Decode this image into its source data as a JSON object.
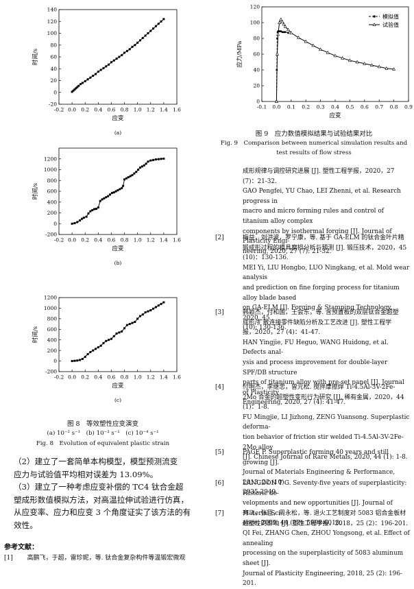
{
  "chart_data": [
    {
      "type": "line",
      "id": "fig8a",
      "ylabel": "时间/s",
      "xlabel": "应变",
      "panel_label": "(a)",
      "xlim": [
        -0.2,
        1.6
      ],
      "ylim": [
        -20,
        140
      ],
      "xticks": [
        -0.2,
        0.0,
        0.2,
        0.4,
        0.6,
        0.8,
        1.0,
        1.2,
        1.4,
        1.6
      ],
      "yticks": [
        -20,
        0,
        20,
        40,
        60,
        80,
        100,
        120,
        140
      ],
      "xtick_labels": [
        "-0.2",
        "0.0",
        "0.2",
        "0.4",
        "0.6",
        "0.8",
        "1.0",
        "1.2",
        "1.4",
        "1.6"
      ],
      "ytick_labels": [
        "-20",
        "0",
        "20",
        "40",
        "60",
        "80",
        "100",
        "120",
        "140"
      ],
      "series": [
        {
          "marker": "square",
          "x": [
            0.0,
            0.02,
            0.04,
            0.06,
            0.08,
            0.1,
            0.13,
            0.16,
            0.2,
            0.24,
            0.28,
            0.32,
            0.36,
            0.4,
            0.44,
            0.48,
            0.52,
            0.56,
            0.6,
            0.64,
            0.68,
            0.72,
            0.76,
            0.8,
            0.84,
            0.88,
            0.92,
            0.96,
            1.0,
            1.04,
            1.08,
            1.12,
            1.16,
            1.2,
            1.24,
            1.28,
            1.32,
            1.36,
            1.4
          ],
          "y": [
            1,
            3,
            5,
            7,
            9,
            11,
            14,
            16,
            19,
            22,
            25,
            28,
            31,
            35,
            38,
            41,
            44,
            47,
            51,
            54,
            57,
            60,
            63,
            67,
            70,
            73,
            77,
            80,
            84,
            88,
            92,
            96,
            100,
            104,
            108,
            112,
            116,
            120,
            124
          ]
        }
      ]
    },
    {
      "type": "line",
      "id": "fig8b",
      "ylabel": "时间/s",
      "xlabel": "应变",
      "panel_label": "(b)",
      "xlim": [
        -0.2,
        1.6
      ],
      "ylim": [
        -200,
        1400
      ],
      "xticks": [
        -0.2,
        0.0,
        0.2,
        0.4,
        0.6,
        0.8,
        1.0,
        1.2,
        1.4,
        1.6
      ],
      "yticks": [
        -200,
        0,
        200,
        400,
        600,
        800,
        1000,
        1200
      ],
      "xtick_labels": [
        "-0.2",
        "0.0",
        "0.2",
        "0.4",
        "0.6",
        "0.8",
        "1.0",
        "1.2",
        "1.4",
        "1.6"
      ],
      "ytick_labels": [
        "-200",
        "0",
        "200",
        "400",
        "600",
        "800",
        "1000",
        "1200"
      ],
      "series": [
        {
          "marker": "square",
          "x": [
            0.0,
            0.04,
            0.08,
            0.12,
            0.15,
            0.18,
            0.22,
            0.25,
            0.28,
            0.31,
            0.34,
            0.37,
            0.4,
            0.43,
            0.46,
            0.49,
            0.52,
            0.55,
            0.58,
            0.61,
            0.64,
            0.67,
            0.7,
            0.73,
            0.76,
            0.78,
            0.8,
            0.83,
            0.86,
            0.89,
            0.92,
            0.95,
            0.98,
            1.01,
            1.04,
            1.07,
            1.1,
            1.13,
            1.16,
            1.2,
            1.24,
            1.28,
            1.32,
            1.36,
            1.4
          ],
          "y": [
            0,
            10,
            30,
            60,
            90,
            110,
            130,
            190,
            230,
            250,
            270,
            275,
            300,
            420,
            450,
            470,
            490,
            510,
            540,
            570,
            580,
            600,
            620,
            640,
            660,
            700,
            820,
            840,
            860,
            880,
            900,
            930,
            960,
            1000,
            1040,
            1060,
            1080,
            1110,
            1150,
            1170,
            1180,
            1190,
            1195,
            1200,
            1205
          ]
        }
      ]
    },
    {
      "type": "line",
      "id": "fig8c",
      "ylabel": "时间/s",
      "xlabel": "应变",
      "panel_label": "(c)",
      "xlim": [
        -0.2,
        1.6
      ],
      "ylim": [
        -200,
        1200
      ],
      "xticks": [
        -0.2,
        0.0,
        0.2,
        0.4,
        0.6,
        0.8,
        1.0,
        1.2,
        1.4,
        1.6
      ],
      "yticks": [
        -200,
        0,
        200,
        400,
        600,
        800,
        1000,
        1200
      ],
      "xtick_labels": [
        "-0.2",
        "0.0",
        "0.2",
        "0.4",
        "0.6",
        "0.8",
        "1.0",
        "1.2",
        "1.4",
        "1.6"
      ],
      "ytick_labels": [
        "-200",
        "0",
        "200",
        "400",
        "600",
        "800",
        "1000",
        "1200"
      ],
      "series": [
        {
          "marker": "square",
          "x": [
            0.0,
            0.04,
            0.08,
            0.12,
            0.16,
            0.2,
            0.24,
            0.28,
            0.32,
            0.36,
            0.4,
            0.44,
            0.48,
            0.52,
            0.56,
            0.6,
            0.64,
            0.68,
            0.72,
            0.76,
            0.8,
            0.84,
            0.88,
            0.92,
            0.96,
            1.0,
            1.04,
            1.08,
            1.12,
            1.16,
            1.2,
            1.24,
            1.28,
            1.32,
            1.36,
            1.4
          ],
          "y": [
            0,
            5,
            10,
            20,
            40,
            80,
            130,
            170,
            200,
            230,
            260,
            290,
            340,
            380,
            400,
            420,
            470,
            520,
            540,
            560,
            620,
            680,
            700,
            720,
            740,
            800,
            850,
            880,
            920,
            940,
            960,
            990,
            1020,
            1050,
            1080,
            1110
          ]
        }
      ]
    },
    {
      "type": "line",
      "id": "fig9",
      "ylabel": "应力/MPa",
      "xlabel": "应变",
      "xlim": [
        -0.1,
        0.9
      ],
      "ylim": [
        0,
        120
      ],
      "xticks": [
        -0.1,
        0.0,
        0.1,
        0.2,
        0.3,
        0.4,
        0.5,
        0.6,
        0.7,
        0.8,
        0.9
      ],
      "yticks": [
        0,
        20,
        40,
        60,
        80,
        100,
        120
      ],
      "xtick_labels": [
        "-0.1",
        "0.0",
        "0.1",
        "0.2",
        "0.3",
        "0.4",
        "0.5",
        "0.6",
        "0.7",
        "0.8",
        "0.9"
      ],
      "ytick_labels": [
        "0",
        "20",
        "40",
        "60",
        "80",
        "100",
        "120"
      ],
      "legend_position": "top-right",
      "series": [
        {
          "name": "模拟值",
          "style": "dashed",
          "marker": "square",
          "x": [
            0.0,
            0.002,
            0.005,
            0.008,
            0.012,
            0.016,
            0.02,
            0.03,
            0.04,
            0.05,
            0.06,
            0.08
          ],
          "y": [
            0,
            40,
            80,
            88,
            89,
            89,
            89,
            89,
            88,
            88,
            88,
            87
          ]
        },
        {
          "name": "试验值",
          "style": "solid",
          "marker": "triangle",
          "x": [
            0.0,
            0.005,
            0.01,
            0.02,
            0.03,
            0.04,
            0.05,
            0.06,
            0.08,
            0.1,
            0.15,
            0.2,
            0.25,
            0.3,
            0.35,
            0.4,
            0.45,
            0.5,
            0.55,
            0.6,
            0.65,
            0.7,
            0.75,
            0.8
          ],
          "y": [
            0,
            60,
            85,
            100,
            104,
            101,
            98,
            95,
            91,
            87,
            81,
            76,
            71,
            66,
            62,
            58,
            55,
            52,
            50,
            48,
            46,
            44,
            42,
            41
          ]
        }
      ]
    }
  ],
  "fig8": {
    "caption_cn": "图 8　等效塑性应变演变",
    "subcaption": "(a) 10⁻² s⁻¹　(b) 10⁻³ s⁻¹　(c) 10⁻⁴ s⁻¹",
    "caption_en": "Fig. 8　Evolution of equivalent plastic strain"
  },
  "fig9": {
    "caption_cn": "图 9　应力数值模拟结果与试验结果对比",
    "caption_en_1": "Fig. 9　Comparison between numerical simulation results and",
    "caption_en_2": "test results of flow stress"
  },
  "conclusions": [
    "（2）建立了一套简单本构模型，模型预测流变",
    "应力与试验值平均相对误差为 13.09%。",
    "（3）建立了一种考虑应变补偿的 TC4 钛合金超",
    "塑成形数值模拟方法，对高温拉伸试验进行仿真，",
    "从应变率、应力和应变 3 个角度证实了该方法的有",
    "效性。"
  ],
  "references_heading": "参考文献：",
  "ref1_num": "[1]",
  "ref1_line1": "高鹏飞，于超，雷珍妮，等. 钛合金复杂构件等温锻宏微观",
  "ref1_cont": [
    "成形规律与调控研究进展 [J]. 塑性工程学报，2020，27",
    "(7)：21-32.",
    "GAO Pengfei, YU Chao, LEI Zhenni, et al. Research progress in",
    "macro and micro forming rules and control of titanium alloy complex",
    "components by isothermal forging [J]. Journal of Plasticity Engi-",
    "neering, 2020, 27 (7): 21-32."
  ],
  "references": [
    {
      "num": "[2]",
      "lines": [
        "梅益，刘洪波，罗宁康，等. 基于 GA-ELM 的钛合金叶片精",
        "锻成形过程的模具磨损分析与预测 [J]. 锻压技术，2020，45",
        "(10)：130-136.",
        "MEI Yi, LIU Hongbo, LUO Ningkang, et al. Mold wear analysis",
        "and prediction on fine forging process for titanium alloy blade based",
        "on GA-ELM [J]. Forging & Stamping Technology, 2020, 45",
        "(10): 130-136."
      ]
    },
    {
      "num": "[3]",
      "lines": [
        "韩颖杰，付和国，王会东，等. 含预置板的双层钛合金超塑",
        "成形/扩散连接零件缺陷分析及工艺改进 [J]. 塑性工程学",
        "报，2020，27 (4)：41-47.",
        "HAN Yingjie, FU Heguo, WANG Huidong, et al. Defects anal-",
        "ysis and process improvement for double-layer SPF/DB structure",
        "parts of titanium alloy with pre-set panel [J]. Journal of Plasticity",
        "Engineering, 2020, 27 (4): 41-47."
      ]
    },
    {
      "num": "[4]",
      "lines": [
        "付明杰，李继忠，曾元松. 搅拌摩擦焊 Ti-4.5Al-3V-2Fe-",
        "2Mo 合金的超塑性变形行为研究 [J]. 稀有金属，2020，44",
        "(1)：1-8.",
        "FU Mingjie, LI Jizhong, ZENG Yuansong. Superplastic deforma-",
        "tion behavior of friction stir welded Ti-4.5Al-3V-2Fe-2Mo alloy",
        "[J]. Chinese Journal of Rare Metals, 2020, 44 (1): 1-8."
      ]
    },
    {
      "num": "[5]",
      "lines": [
        "PAGE P. Superplastic forming 40 years and still growing [J].",
        "Journal of Materials Engineering & Performance, 2013, 22 (10):",
        "2935-2949."
      ]
    },
    {
      "num": "[6]",
      "lines": [
        "LANGDON T G. Seventy-five years of superplasticity: Historic de-",
        "velopments and new opportunities [J]. Journal of Material Sci-",
        "ence, 2009, 44 (22): 5998-6010."
      ]
    },
    {
      "num": "[7]",
      "lines": [
        "齐飞，张臣，周永松，等. 退火工艺制度对 5083 铝合金板材",
        "超塑性的影响 [J]. 塑性工程学报，2018，25 (2)：196-201.",
        "QI Fei, ZHANG Chen, ZHOU Yongsong, et al. Effect of annealing",
        "processing on the superplasticity of 5083 aluminum sheet [J].",
        "Journal of Plasticity Engineering, 2018, 25 (2): 196-201."
      ]
    }
  ]
}
